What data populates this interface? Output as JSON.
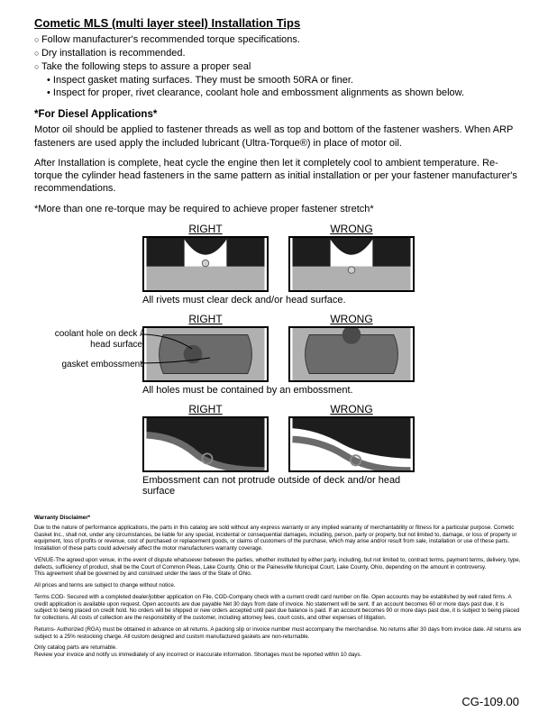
{
  "title": "Cometic MLS (multi layer steel) Installation Tips",
  "bullets": [
    {
      "level": 1,
      "text": "Follow manufacturer's recommended torque specifications."
    },
    {
      "level": 1,
      "text": "Dry installation is recommended."
    },
    {
      "level": 1,
      "text": "Take the following steps to assure a proper seal"
    },
    {
      "level": 2,
      "text": "Inspect gasket mating surfaces.  They must be smooth 50RA or finer."
    },
    {
      "level": 2,
      "text": "Inspect for proper, rivet clearance, coolant hole and embossment alignments as shown below."
    }
  ],
  "diesel": {
    "heading": "*For Diesel Applications*",
    "p1": "Motor oil should be applied to fastener threads as well as top and bottom of the fastener washers. When ARP fasteners are used apply the included lubricant (Ultra-Torque®) in place of motor oil.",
    "p2": "After Installation is complete, heat cycle the engine then let it completely cool to ambient temperature. Re-torque the cylinder head fasteners in the same pattern as initial installation or per your fastener manufacturer's recommendations.",
    "p3": "*More than one re-torque may be required to achieve proper fastener stretch*"
  },
  "diagrams": {
    "labels": {
      "right": "RIGHT",
      "wrong": "WRONG"
    },
    "row1_caption": "All rivets must clear deck and/or head surface.",
    "row2_caption": "All holes must be contained by an embossment.",
    "row3_caption": "Embossment can not protrude outside of deck and/or head surface",
    "callout1": "coolant hole on deck / head surface",
    "callout2": "gasket embossment",
    "colors": {
      "dark": "#1d1d1d",
      "mid": "#6b6b6b",
      "light": "#b0b0b0",
      "rivet": "#d0d0d0"
    }
  },
  "disclaimer": {
    "heading": "Warranty Disclaimer*",
    "p1": "Due to the nature of performance applications, the parts in this catalog are sold without any express warranty or any implied warranty of merchantability or fitness for a particular purpose. Cometic Gasket Inc., shall not, under any circumstances, be liable for any special, incidental or consequential damages, including, person, party or property, but not limited to, damage, or loss of property or equipment, loss of profits or revenue, cost of purchased or replacement goods, or claims of customers of the purchase, which may arise and/or result from sale, installation or use of these parts. Installation of these parts could adversely affect the motor manufacturers warranty coverage.",
    "p2": "VENUE-The agreed upon venue, in the event of dispute whatsoever between the parties, whether instituted by either party, including, but not limited to, contract terms, payment terms, delivery, type, defects, sufficiency of product, shall be the Court of Common Pleas, Lake County, Ohio or the Painesville Municipal Court, Lake County, Ohio, depending on the amount in controversy.\nThis agreement shall be governed by and construed under the laws of the State of Ohio.",
    "p3": "All prices and terms are subject to change without notice.",
    "p4": "Terms COD- Secured with a completed dealer/jobber application on File, COD-Company check with a current credit card number on file. Open accounts may be established by well rated firms. A credit application is available upon request. Open accounts are due payable Net 30 days from date of invoice. No statement will be sent. If an account becomes 60 or more days past due, it is subject to being placed on credit hold. No orders will be shipped or new orders accepted until past due balance is paid. If an account becomes 90 or more days past due, it is subject to being placed for collections. All costs of collection are the responsibility of the customer, including attorney fees, court costs, and other expenses of litigation.",
    "p5": "Returns- Authorized (RGA) must be obtained in advance on all returns. A packing slip or invoice number must accompany the merchandise. No returns after 30 days from invoice date. All returns are subject to a 25% restocking charge. All custom designed and custom manufactured gaskets are non-returnable.",
    "p6": "Only catalog parts are returnable.\nReview your invoice and notify us immediately of any incorrect or inaccurate information. Shortages must be reported within 10 days."
  },
  "footer": "CG-109.00"
}
